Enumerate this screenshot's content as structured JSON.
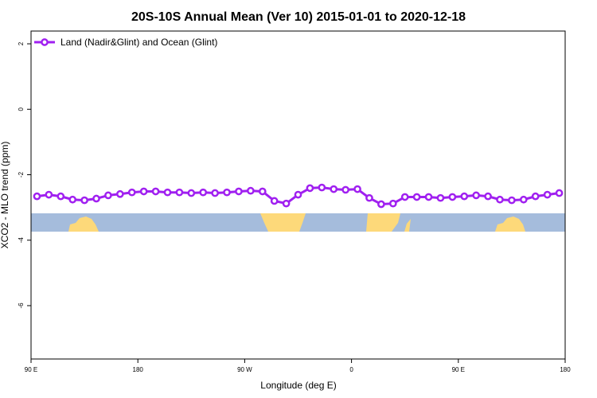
{
  "chart_data": {
    "type": "line",
    "title": "20S-10S Annual Mean (Ver 10)   2015-01-01 to 2020-12-18",
    "x_label": "Longitude (deg E)",
    "y_label": "XCO2 - MLO trend (ppm)",
    "x": [
      95,
      105,
      115,
      125,
      135,
      145,
      155,
      165,
      175,
      185,
      195,
      205,
      215,
      225,
      235,
      245,
      255,
      265,
      275,
      285,
      295,
      305,
      315,
      325,
      335,
      345,
      355,
      365,
      375,
      385,
      395,
      405,
      415,
      425,
      435,
      445,
      455,
      465,
      475,
      485,
      495,
      505,
      515,
      525,
      535
    ],
    "series": [
      {
        "name": "Land (Nadir&Glint) and Ocean (Glint)",
        "color": "#a020f0",
        "values": [
          -2.66,
          -2.61,
          -2.66,
          -2.76,
          -2.78,
          -2.73,
          -2.63,
          -2.59,
          -2.54,
          -2.51,
          -2.51,
          -2.54,
          -2.54,
          -2.56,
          -2.54,
          -2.56,
          -2.54,
          -2.51,
          -2.49,
          -2.51,
          -2.8,
          -2.88,
          -2.61,
          -2.41,
          -2.39,
          -2.44,
          -2.46,
          -2.44,
          -2.71,
          -2.9,
          -2.88,
          -2.68,
          -2.68,
          -2.68,
          -2.71,
          -2.68,
          -2.66,
          -2.63,
          -2.66,
          -2.76,
          -2.78,
          -2.76,
          -2.66,
          -2.61,
          -2.56
        ]
      }
    ],
    "xlim": [
      90,
      540
    ],
    "xticks": [
      {
        "value": 90,
        "label": "90 E"
      },
      180,
      {
        "value": 270,
        "label": "90 W"
      },
      {
        "value": 360,
        "label": "0"
      },
      {
        "value": 450,
        "label": "90 E"
      },
      {
        "value": 540,
        "label": "180"
      }
    ],
    "ylim": [
      -7.63,
      2.39
    ],
    "yticks": [
      2,
      0,
      -2,
      -4,
      -6
    ],
    "legend": "top-left"
  }
}
